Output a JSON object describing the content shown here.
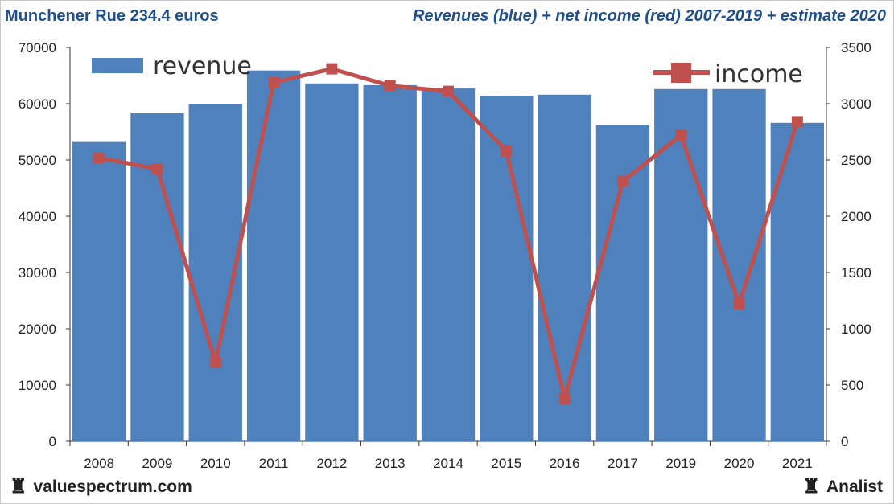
{
  "header": {
    "left": "Munchener Rue 234.4 euros",
    "right": "Revenues (blue) + net income (red) 2007-2019 + estimate 2020"
  },
  "footer": {
    "left": "valuespectrum.com",
    "right": "Analist",
    "icon": "rook-icon"
  },
  "colors": {
    "bar": "#4f81bd",
    "line": "#c0504d",
    "axis": "#333333"
  },
  "chart_data": {
    "type": "bar",
    "categories": [
      "2008",
      "2009",
      "2010",
      "2011",
      "2012",
      "2013",
      "2014",
      "2015",
      "2016",
      "2017",
      "2019",
      "2020",
      "2021"
    ],
    "series": [
      {
        "name": "revenue",
        "axis": "left",
        "type": "bar",
        "values": [
          53200,
          58300,
          59900,
          65900,
          63600,
          63300,
          62700,
          61400,
          61600,
          56200,
          62600,
          62600,
          56600
        ]
      },
      {
        "name": "income",
        "axis": "right",
        "type": "line",
        "values": [
          2520,
          2420,
          700,
          3190,
          3310,
          3160,
          3110,
          2580,
          380,
          2310,
          2720,
          1220,
          2840
        ]
      }
    ],
    "y_left": {
      "min": 0,
      "max": 70000,
      "ticks": [
        "0",
        "10000",
        "20000",
        "30000",
        "40000",
        "50000",
        "60000",
        "70000"
      ]
    },
    "y_right": {
      "min": 0,
      "max": 3500,
      "ticks": [
        "0",
        "500",
        "1000",
        "1500",
        "2000",
        "2500",
        "3000",
        "3500"
      ]
    },
    "legend": [
      "revenue",
      "income"
    ],
    "title": "Revenues (blue) + net income (red) 2007-2019 + estimate 2020"
  }
}
